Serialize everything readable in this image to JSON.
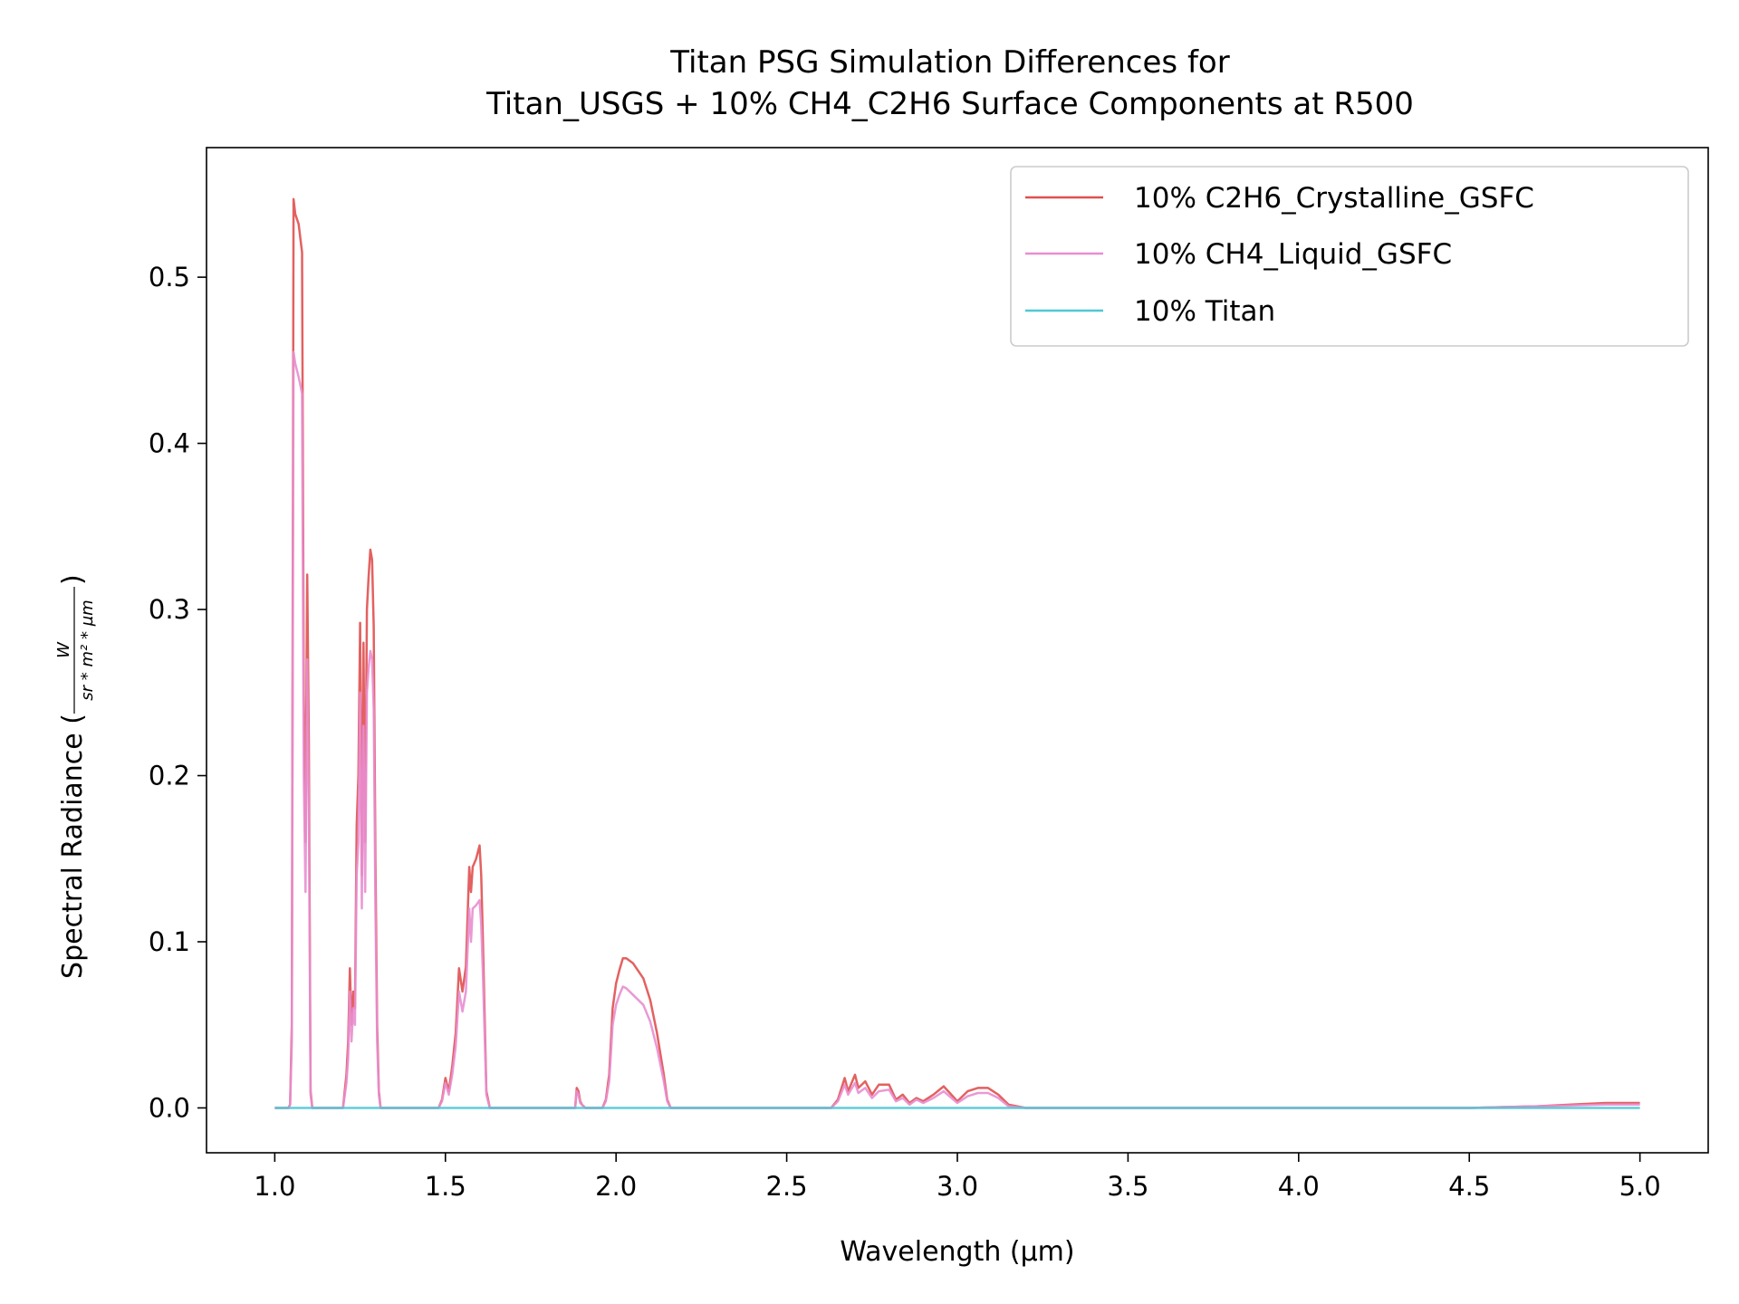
{
  "chart_data": {
    "type": "line",
    "title_line1": "Titan PSG Simulation Differences for",
    "title_line2": "Titan_USGS + 10% CH4_C2H6 Surface Components at R500",
    "xlabel": "Wavelength (µm)",
    "ylabel_prefix": "Spectral Radiance (",
    "ylabel_numerator": "W",
    "ylabel_denominator": "sr * m² * µm",
    "ylabel_suffix": ")",
    "xlim": [
      0.8,
      5.2
    ],
    "ylim": [
      -0.027,
      0.578
    ],
    "xticks": [
      1.0,
      1.5,
      2.0,
      2.5,
      3.0,
      3.5,
      4.0,
      4.5,
      5.0
    ],
    "xtick_labels": [
      "1.0",
      "1.5",
      "2.0",
      "2.5",
      "3.0",
      "3.5",
      "4.0",
      "4.5",
      "5.0"
    ],
    "yticks": [
      0.0,
      0.1,
      0.2,
      0.3,
      0.4,
      0.5
    ],
    "ytick_labels": [
      "0.0",
      "0.1",
      "0.2",
      "0.3",
      "0.4",
      "0.5"
    ],
    "grid": false,
    "legend_position": "top-right",
    "series": [
      {
        "name": "10% C2H6_Crystalline_GSFC",
        "color": "#e05050",
        "x": [
          1.0,
          1.04,
          1.045,
          1.05,
          1.055,
          1.06,
          1.07,
          1.08,
          1.085,
          1.09,
          1.095,
          1.1,
          1.105,
          1.11,
          1.12,
          1.2,
          1.21,
          1.215,
          1.22,
          1.225,
          1.23,
          1.235,
          1.24,
          1.245,
          1.25,
          1.255,
          1.26,
          1.265,
          1.27,
          1.275,
          1.28,
          1.285,
          1.29,
          1.295,
          1.3,
          1.305,
          1.31,
          1.32,
          1.48,
          1.49,
          1.5,
          1.51,
          1.52,
          1.53,
          1.54,
          1.55,
          1.56,
          1.57,
          1.575,
          1.58,
          1.59,
          1.6,
          1.605,
          1.61,
          1.62,
          1.63,
          1.88,
          1.885,
          1.89,
          1.895,
          1.9,
          1.91,
          1.96,
          1.97,
          1.98,
          1.99,
          2.0,
          2.01,
          2.02,
          2.03,
          2.05,
          2.08,
          2.1,
          2.12,
          2.14,
          2.15,
          2.16,
          2.63,
          2.65,
          2.67,
          2.68,
          2.7,
          2.71,
          2.73,
          2.75,
          2.77,
          2.8,
          2.82,
          2.84,
          2.86,
          2.88,
          2.9,
          2.93,
          2.96,
          3.0,
          3.03,
          3.06,
          3.09,
          3.12,
          3.15,
          3.2,
          4.5,
          4.7,
          4.8,
          4.9,
          5.0
        ],
        "values": [
          0,
          0,
          0.002,
          0.05,
          0.547,
          0.538,
          0.532,
          0.515,
          0.25,
          0.16,
          0.321,
          0.22,
          0.01,
          0,
          0,
          0,
          0.02,
          0.04,
          0.084,
          0.05,
          0.07,
          0.06,
          0.17,
          0.2,
          0.292,
          0.14,
          0.28,
          0.16,
          0.3,
          0.32,
          0.336,
          0.33,
          0.29,
          0.15,
          0.05,
          0.01,
          0,
          0,
          0,
          0.005,
          0.018,
          0.01,
          0.025,
          0.045,
          0.084,
          0.07,
          0.085,
          0.145,
          0.13,
          0.145,
          0.15,
          0.158,
          0.14,
          0.1,
          0.01,
          0,
          0,
          0.012,
          0.01,
          0.004,
          0.002,
          0,
          0,
          0.005,
          0.02,
          0.06,
          0.075,
          0.083,
          0.09,
          0.09,
          0.087,
          0.078,
          0.065,
          0.045,
          0.02,
          0.005,
          0,
          0,
          0.005,
          0.018,
          0.01,
          0.02,
          0.012,
          0.016,
          0.008,
          0.014,
          0.014,
          0.005,
          0.008,
          0.003,
          0.006,
          0.004,
          0.008,
          0.013,
          0.004,
          0.01,
          0.012,
          0.012,
          0.008,
          0.002,
          0,
          0,
          0.001,
          0.002,
          0.003,
          0.003
        ]
      },
      {
        "name": "10% CH4_Liquid_GSFC",
        "color": "#e88ed0",
        "x": [
          1.0,
          1.04,
          1.045,
          1.05,
          1.055,
          1.06,
          1.07,
          1.08,
          1.085,
          1.09,
          1.095,
          1.1,
          1.105,
          1.11,
          1.12,
          1.2,
          1.21,
          1.215,
          1.22,
          1.225,
          1.23,
          1.235,
          1.24,
          1.245,
          1.25,
          1.255,
          1.26,
          1.265,
          1.27,
          1.275,
          1.28,
          1.285,
          1.29,
          1.295,
          1.3,
          1.305,
          1.31,
          1.32,
          1.48,
          1.49,
          1.5,
          1.51,
          1.52,
          1.53,
          1.54,
          1.55,
          1.56,
          1.57,
          1.575,
          1.58,
          1.59,
          1.6,
          1.605,
          1.61,
          1.62,
          1.63,
          1.88,
          1.885,
          1.89,
          1.895,
          1.9,
          1.91,
          1.96,
          1.97,
          1.98,
          1.99,
          2.0,
          2.01,
          2.02,
          2.03,
          2.05,
          2.08,
          2.1,
          2.12,
          2.14,
          2.15,
          2.16,
          2.63,
          2.65,
          2.67,
          2.68,
          2.7,
          2.71,
          2.73,
          2.75,
          2.77,
          2.8,
          2.82,
          2.84,
          2.86,
          2.88,
          2.9,
          2.93,
          2.96,
          3.0,
          3.03,
          3.06,
          3.09,
          3.12,
          3.15,
          3.2,
          4.5,
          4.7,
          4.8,
          4.9,
          5.0
        ],
        "values": [
          0,
          0,
          0.002,
          0.04,
          0.455,
          0.448,
          0.44,
          0.43,
          0.2,
          0.13,
          0.27,
          0.18,
          0.008,
          0,
          0,
          0,
          0.015,
          0.03,
          0.07,
          0.04,
          0.06,
          0.05,
          0.14,
          0.16,
          0.25,
          0.12,
          0.23,
          0.13,
          0.25,
          0.265,
          0.275,
          0.27,
          0.24,
          0.12,
          0.04,
          0.008,
          0,
          0,
          0,
          0.004,
          0.015,
          0.008,
          0.02,
          0.037,
          0.07,
          0.058,
          0.07,
          0.12,
          0.1,
          0.12,
          0.122,
          0.125,
          0.11,
          0.08,
          0.008,
          0,
          0,
          0.01,
          0.008,
          0.003,
          0.002,
          0,
          0,
          0.004,
          0.016,
          0.05,
          0.062,
          0.068,
          0.073,
          0.072,
          0.068,
          0.062,
          0.052,
          0.036,
          0.016,
          0.004,
          0,
          0,
          0.004,
          0.014,
          0.008,
          0.015,
          0.009,
          0.012,
          0.006,
          0.01,
          0.011,
          0.004,
          0.006,
          0.002,
          0.005,
          0.003,
          0.006,
          0.01,
          0.003,
          0.007,
          0.009,
          0.009,
          0.006,
          0.001,
          0,
          0,
          0.001,
          0.0015,
          0.002,
          0.002
        ]
      },
      {
        "name": "10% Titan",
        "color": "#4fc8d4",
        "x": [
          1.0,
          5.0
        ],
        "values": [
          0,
          0
        ]
      }
    ]
  }
}
